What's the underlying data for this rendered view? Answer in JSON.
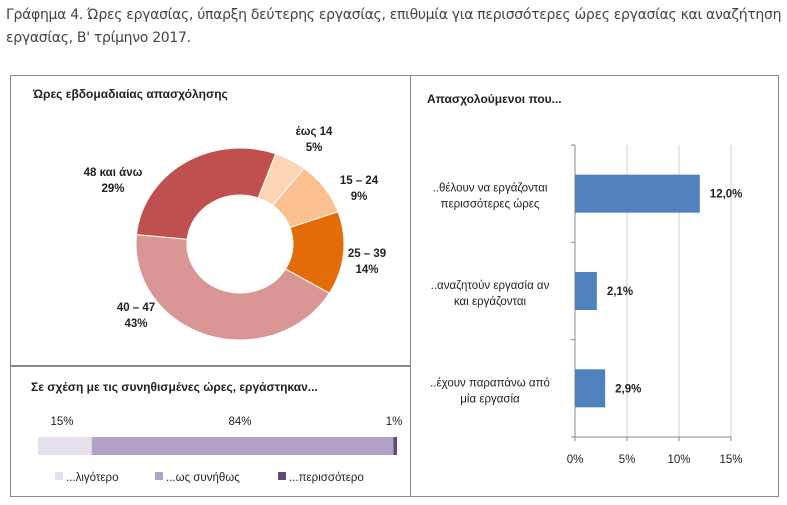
{
  "caption": "Γράφημα 4. Ώρες εργασίας, ύπαρξη δεύτερης εργασίας, επιθυμία για περισσότερες ώρες εργασίας και αναζήτηση εργασίας, Β' τρίμηνο 2017.",
  "chart_data": [
    {
      "type": "pie",
      "variant": "donut",
      "title": "Ώρες εβδομαδιαίας απασχόλησης",
      "categories": [
        "έως 14",
        "15 – 24",
        "25 – 39",
        "40 – 47",
        "48 και άνω"
      ],
      "values": [
        5,
        9,
        14,
        43,
        29
      ],
      "value_labels": [
        "5%",
        "9%",
        "14%",
        "43%",
        "29%"
      ],
      "colors": [
        "#FCD5B5",
        "#FAC090",
        "#E36C09",
        "#D99694",
        "#C0504D"
      ]
    },
    {
      "type": "bar",
      "variant": "stacked-horizontal-100",
      "title": "Σε σχέση με τις συνηθισμένες ώρες, εργάστηκαν...",
      "categories": [
        "...λιγότερο",
        "...ως συνήθως",
        "...περισσότερο"
      ],
      "values": [
        15,
        84,
        1
      ],
      "value_labels": [
        "15%",
        "84%",
        "1%"
      ],
      "colors": [
        "#E6E0EC",
        "#B3A2C7",
        "#604A7B"
      ],
      "legend": "bottom"
    },
    {
      "type": "bar",
      "variant": "horizontal",
      "title": "Απασχολούμενοι που...",
      "categories": [
        [
          "..θέλουν να εργάζονται",
          "περισσότερες ώρες"
        ],
        [
          "..αναζητούν εργασία αν",
          "και εργάζονται"
        ],
        [
          "..έχουν παραπάνω από",
          "μία εργασία"
        ]
      ],
      "values": [
        12.0,
        2.1,
        2.9
      ],
      "value_labels": [
        "12,0%",
        "2,1%",
        "2,9%"
      ],
      "xlim": [
        0,
        15
      ],
      "xticks": [
        "0%",
        "5%",
        "10%",
        "15%"
      ],
      "grid": true,
      "color": "#4F81BD"
    }
  ]
}
